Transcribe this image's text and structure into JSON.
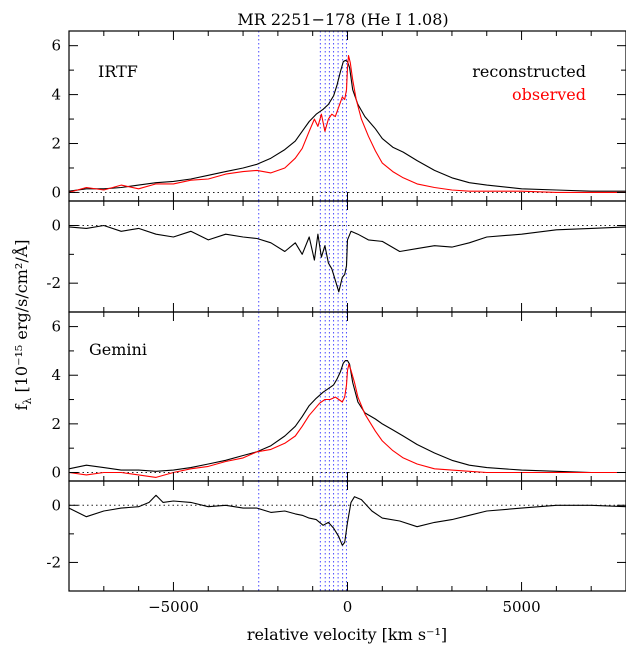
{
  "chart_data": {
    "type": "line",
    "title": "MR 2251−178 (He I 1.08)",
    "xlabel": "relative velocity [km s⁻¹]",
    "ylabel": "fλ [10⁻¹⁵ erg/s/cm²/Å]",
    "xlim": [
      -8000,
      8000
    ],
    "x_ticks": [
      -5000,
      0,
      5000
    ],
    "x_tick_labels": [
      "−5000",
      "0",
      "5000"
    ],
    "vertical_lines_velocity": [
      -2550,
      -780,
      -640,
      -520,
      -400,
      -270,
      -140,
      -30
    ],
    "panels": [
      {
        "id": "irtf-spectrum",
        "label": "IRTF",
        "ylim": [
          -0.35,
          6.6
        ],
        "y_ticks": [
          0,
          2,
          4,
          6
        ],
        "zero_line": true,
        "legend": [
          {
            "text": "reconstructed",
            "color": "#000000"
          },
          {
            "text": "observed",
            "color": "#ff0000"
          }
        ],
        "series": [
          {
            "name": "reconstructed",
            "color": "#000000",
            "x": [
              -8000,
              -7500,
              -7000,
              -6500,
              -6000,
              -5500,
              -5000,
              -4500,
              -4000,
              -3500,
              -3000,
              -2600,
              -2200,
              -1800,
              -1500,
              -1300,
              -1100,
              -900,
              -700,
              -550,
              -400,
              -300,
              -200,
              -120,
              -60,
              0,
              60,
              150,
              300,
              500,
              800,
              1000,
              1300,
              1600,
              2000,
              2500,
              3000,
              3500,
              4000,
              5000,
              6000,
              7000,
              8000
            ],
            "y": [
              0.05,
              0.15,
              0.15,
              0.2,
              0.3,
              0.4,
              0.45,
              0.55,
              0.7,
              0.85,
              1.0,
              1.15,
              1.4,
              1.75,
              2.1,
              2.5,
              2.9,
              3.2,
              3.4,
              3.6,
              3.95,
              4.4,
              4.95,
              5.35,
              5.4,
              5.35,
              5.1,
              4.2,
              3.6,
              3.1,
              2.6,
              2.2,
              1.85,
              1.65,
              1.3,
              0.9,
              0.6,
              0.4,
              0.3,
              0.15,
              0.1,
              0.05,
              0.05
            ]
          },
          {
            "name": "observed",
            "color": "#ff0000",
            "x": [
              -8000,
              -7500,
              -7000,
              -6500,
              -6000,
              -5500,
              -5000,
              -4500,
              -4000,
              -3500,
              -3000,
              -2600,
              -2200,
              -1800,
              -1500,
              -1300,
              -1100,
              -950,
              -850,
              -750,
              -650,
              -550,
              -450,
              -350,
              -250,
              -150,
              -80,
              -30,
              0,
              30,
              80,
              150,
              250,
              400,
              600,
              800,
              1000,
              1300,
              1600,
              2000,
              2500,
              3000,
              3500,
              4000,
              5000,
              6000,
              7000,
              8000
            ],
            "y": [
              0.0,
              0.2,
              0.1,
              0.3,
              0.15,
              0.35,
              0.35,
              0.5,
              0.55,
              0.75,
              0.85,
              0.9,
              0.8,
              1.0,
              1.4,
              1.8,
              2.5,
              3.0,
              2.7,
              3.2,
              2.5,
              3.0,
              3.2,
              3.1,
              3.5,
              3.9,
              3.8,
              4.2,
              5.1,
              5.6,
              5.3,
              4.6,
              3.8,
              3.0,
              2.3,
              1.7,
              1.2,
              0.85,
              0.6,
              0.35,
              0.2,
              0.1,
              0.05,
              0.05,
              0.05,
              0.0,
              0.0,
              0.0
            ]
          }
        ]
      },
      {
        "id": "irtf-residual",
        "ylim": [
          -3.0,
          0.85
        ],
        "y_ticks": [
          -2,
          0
        ],
        "zero_line": true,
        "series": [
          {
            "name": "",
            "color": "#000000",
            "x": [
              -8000,
              -7500,
              -7000,
              -6500,
              -6000,
              -5500,
              -5000,
              -4500,
              -4000,
              -3500,
              -3000,
              -2600,
              -2200,
              -1800,
              -1500,
              -1300,
              -1100,
              -950,
              -850,
              -750,
              -650,
              -550,
              -450,
              -350,
              -250,
              -150,
              -80,
              -30,
              0,
              100,
              300,
              600,
              1000,
              1500,
              2000,
              2500,
              3000,
              3500,
              4000,
              4500,
              5000,
              6000,
              7000,
              8000
            ],
            "y": [
              -0.05,
              -0.1,
              0.0,
              -0.2,
              -0.1,
              -0.3,
              -0.4,
              -0.2,
              -0.5,
              -0.3,
              -0.4,
              -0.45,
              -0.6,
              -0.9,
              -0.6,
              -1.0,
              -0.4,
              -1.2,
              -0.3,
              -1.1,
              -0.7,
              -1.3,
              -1.5,
              -1.9,
              -2.3,
              -1.8,
              -1.7,
              -1.4,
              -0.5,
              -0.2,
              -0.3,
              -0.5,
              -0.55,
              -0.9,
              -0.8,
              -0.7,
              -0.75,
              -0.6,
              -0.4,
              -0.35,
              -0.3,
              -0.15,
              -0.1,
              -0.05
            ]
          }
        ]
      },
      {
        "id": "gemini-spectrum",
        "label": "Gemini",
        "ylim": [
          -0.35,
          6.6
        ],
        "y_ticks": [
          0,
          2,
          4,
          6
        ],
        "zero_line": true,
        "series": [
          {
            "name": "reconstructed",
            "color": "#000000",
            "x": [
              -8000,
              -7500,
              -7000,
              -6500,
              -6000,
              -5500,
              -5000,
              -4500,
              -4000,
              -3500,
              -3000,
              -2600,
              -2200,
              -1800,
              -1500,
              -1300,
              -1100,
              -900,
              -700,
              -550,
              -400,
              -300,
              -200,
              -120,
              -60,
              0,
              60,
              150,
              300,
              500,
              800,
              1000,
              1300,
              1600,
              2000,
              2500,
              3000,
              3500,
              4000,
              5000,
              6000,
              7000,
              8000
            ],
            "y": [
              0.15,
              0.3,
              0.2,
              0.1,
              0.1,
              0.05,
              0.1,
              0.2,
              0.35,
              0.5,
              0.7,
              0.85,
              1.1,
              1.5,
              1.9,
              2.3,
              2.75,
              3.05,
              3.3,
              3.45,
              3.6,
              3.85,
              4.15,
              4.5,
              4.6,
              4.6,
              4.45,
              3.7,
              2.9,
              2.45,
              2.2,
              2.0,
              1.75,
              1.5,
              1.15,
              0.8,
              0.5,
              0.3,
              0.2,
              0.1,
              0.05,
              0.0,
              0.0
            ]
          },
          {
            "name": "observed",
            "color": "#ff0000",
            "x": [
              -8000,
              -7500,
              -7000,
              -6500,
              -6000,
              -5500,
              -5000,
              -4500,
              -4000,
              -3500,
              -3000,
              -2600,
              -2200,
              -1800,
              -1500,
              -1300,
              -1100,
              -950,
              -800,
              -650,
              -500,
              -350,
              -250,
              -150,
              -80,
              -30,
              0,
              40,
              100,
              200,
              300,
              500,
              800,
              1000,
              1300,
              1600,
              2000,
              2500,
              3000,
              3500,
              4000,
              5000,
              6000,
              7000,
              8000
            ],
            "y": [
              0.0,
              -0.1,
              0.0,
              0.0,
              -0.1,
              -0.2,
              0.0,
              0.15,
              0.25,
              0.45,
              0.6,
              0.85,
              0.95,
              1.2,
              1.5,
              1.9,
              2.35,
              2.6,
              2.85,
              3.0,
              3.0,
              3.1,
              3.0,
              2.9,
              3.1,
              3.6,
              4.2,
              4.45,
              4.2,
              3.7,
              3.1,
              2.4,
              1.7,
              1.3,
              0.9,
              0.6,
              0.35,
              0.15,
              0.1,
              0.05,
              0.0,
              0.0,
              0.0,
              0.0,
              0.0
            ]
          }
        ]
      },
      {
        "id": "gemini-residual",
        "ylim": [
          -3.0,
          0.85
        ],
        "y_ticks": [
          -2,
          0
        ],
        "zero_line": true,
        "series": [
          {
            "name": "",
            "color": "#000000",
            "x": [
              -8000,
              -7500,
              -7000,
              -6500,
              -6000,
              -5700,
              -5500,
              -5300,
              -5000,
              -4500,
              -4000,
              -3500,
              -3000,
              -2600,
              -2200,
              -1800,
              -1500,
              -1300,
              -1100,
              -900,
              -700,
              -550,
              -400,
              -250,
              -150,
              -80,
              0,
              100,
              200,
              400,
              700,
              1000,
              1500,
              2000,
              2500,
              3000,
              3500,
              4000,
              5000,
              6000,
              7000,
              8000
            ],
            "y": [
              -0.1,
              -0.4,
              -0.2,
              -0.1,
              -0.05,
              0.1,
              0.35,
              0.1,
              0.15,
              0.1,
              -0.05,
              0.0,
              -0.1,
              -0.1,
              -0.25,
              -0.2,
              -0.3,
              -0.35,
              -0.45,
              -0.5,
              -0.7,
              -0.6,
              -0.8,
              -1.1,
              -1.4,
              -1.3,
              -0.6,
              0.1,
              0.3,
              0.2,
              -0.2,
              -0.45,
              -0.55,
              -0.75,
              -0.6,
              -0.5,
              -0.35,
              -0.2,
              -0.1,
              0.0,
              0.0,
              -0.05
            ]
          }
        ]
      }
    ]
  }
}
